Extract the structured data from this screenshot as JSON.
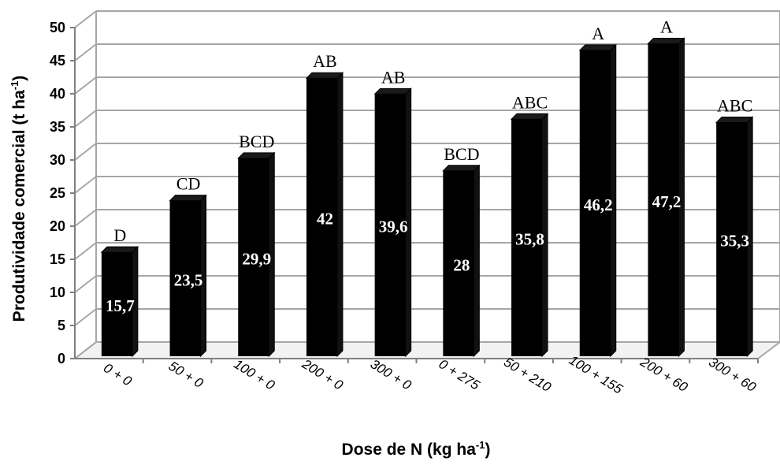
{
  "chart_data": {
    "type": "bar",
    "style": "3d-column",
    "bar_color": "#000000",
    "grid_color": "#a6a6a6",
    "grid": true,
    "legend": "none",
    "categories": [
      "0 + 0",
      "50 + 0",
      "100 + 0",
      "200 + 0",
      "300 + 0",
      "0 + 275",
      "50 + 210",
      "100 + 155",
      "200 + 60",
      "300 + 60"
    ],
    "values": [
      15.7,
      23.5,
      29.9,
      42,
      39.6,
      28,
      35.8,
      46.2,
      47.2,
      35.3
    ],
    "value_labels": [
      "15,7",
      "23,5",
      "29,9",
      "42",
      "39,6",
      "28",
      "35,8",
      "46,2",
      "47,2",
      "35,3"
    ],
    "letters": [
      "D",
      "CD",
      "BCD",
      "AB",
      "AB",
      "BCD",
      "ABC",
      "A",
      "A",
      "ABC"
    ],
    "ylim": [
      0,
      50
    ],
    "yticks": [
      0,
      5,
      10,
      15,
      20,
      25,
      30,
      35,
      40,
      45,
      50
    ],
    "ylabel": {
      "main": "Produtividade comercial (t ha",
      "sup": "-1",
      "end": ")"
    },
    "xlabel": {
      "main": "Dose de N (kg ha",
      "sup": "-1",
      "end": ")"
    }
  }
}
